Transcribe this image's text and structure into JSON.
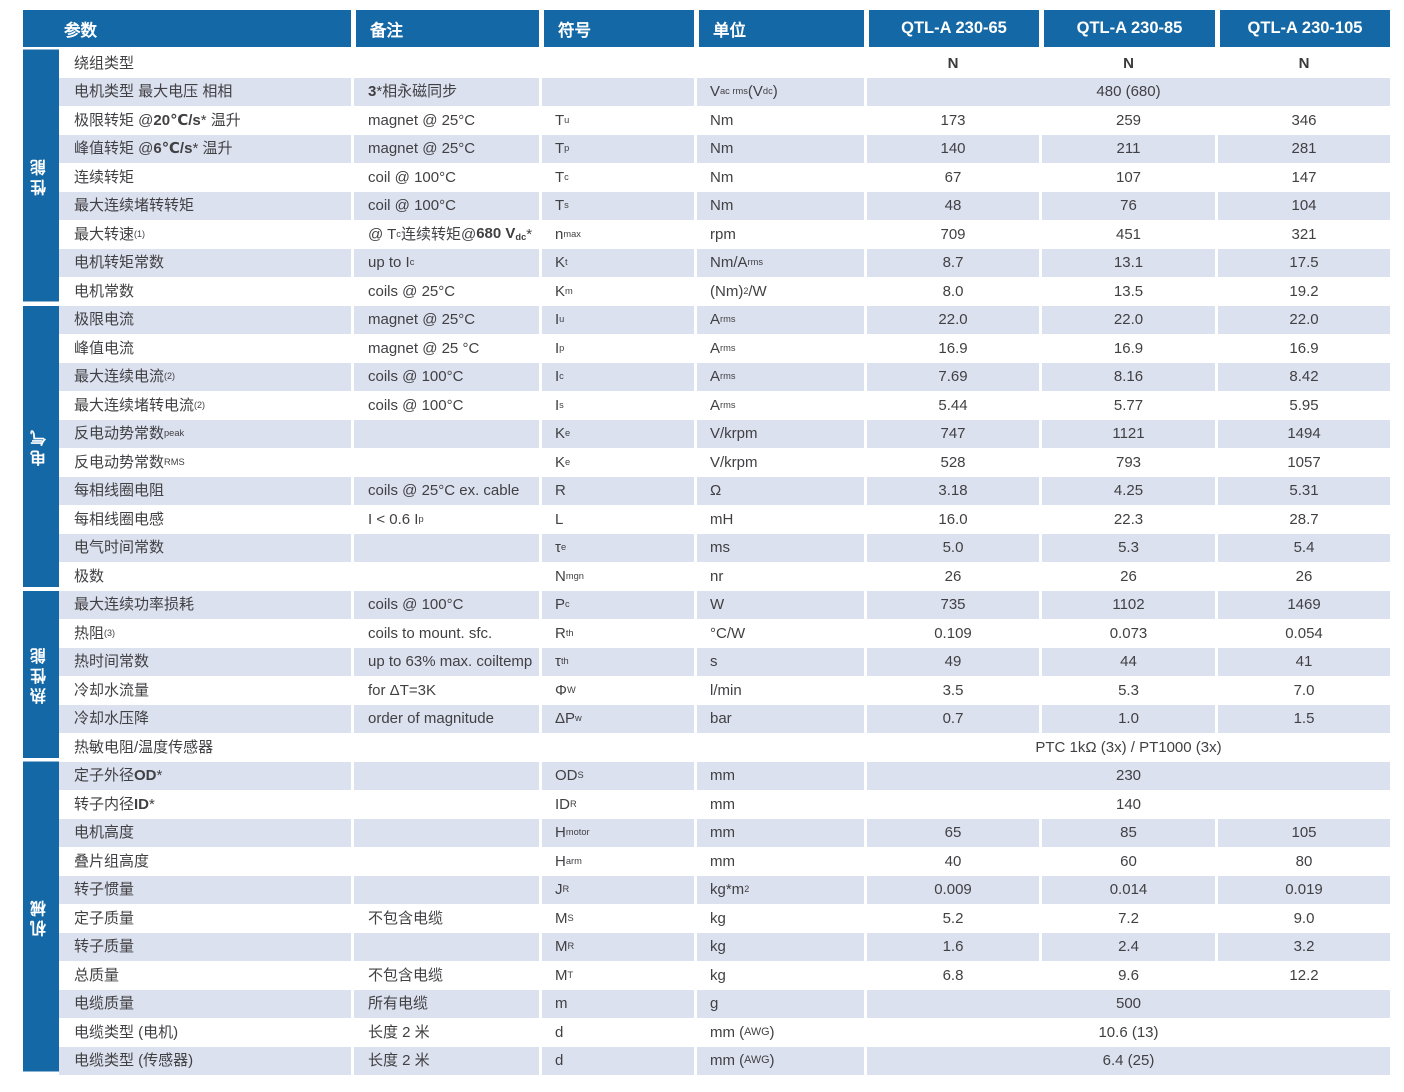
{
  "table": {
    "colors": {
      "header_blue": "#1568A6",
      "section_blue": "#1568A6",
      "stripe_light_blue": "#DCE1EF",
      "text_gray": "#414043"
    },
    "header": {
      "param": "参数",
      "notes": "备注",
      "symbol": "符号",
      "unit": "单位",
      "models": [
        "QTL-A 230-65",
        "QTL-A 230-85",
        "QTL-A 230-105"
      ]
    },
    "sections": [
      {
        "id": "performance",
        "label": "性能",
        "rows": [
          {
            "param": "绕组类型",
            "note": "",
            "symbol": "",
            "unit": "",
            "values": [
              "N",
              "N",
              "N"
            ],
            "bold": true
          },
          {
            "param": "电机类型 最大电压 相相",
            "note": "*{3}*相永磁同步",
            "symbol": "",
            "unit": "V_{ac rms} (V_{dc})",
            "span": "480 (680)"
          },
          {
            "param": "极限转矩 @ *{20℃/s}* 温升",
            "note": "magnet @ 25°C",
            "symbol": "T_{u}",
            "unit": "Nm",
            "values": [
              "173",
              "259",
              "346"
            ]
          },
          {
            "param": "峰值转矩 @ *{6℃/s}* 温升",
            "note": "magnet @ 25°C",
            "symbol": "T_{p}",
            "unit": "Nm",
            "values": [
              "140",
              "211",
              "281"
            ]
          },
          {
            "param": "连续转矩",
            "note": "coil @ 100°C",
            "symbol": "T_{c}",
            "unit": "Nm",
            "values": [
              "67",
              "107",
              "147"
            ]
          },
          {
            "param": "最大连续堵转转矩",
            "note": "coil @ 100°C",
            "symbol": "T_{s}",
            "unit": "Nm",
            "values": [
              "48",
              "76",
              "104"
            ]
          },
          {
            "param": "最大转速^{(1)}",
            "note": "@ T_{c} 连续转矩@ *{680 V_{dc}}*",
            "symbol": "n_{max}",
            "unit": "rpm",
            "values": [
              "709",
              "451",
              "321"
            ]
          },
          {
            "param": "电机转矩常数",
            "note": "up to I_{c}",
            "symbol": "K_{t}",
            "unit": "Nm/A_{rms}",
            "values": [
              "8.7",
              "13.1",
              "17.5"
            ]
          },
          {
            "param": "电机常数",
            "note": "coils @ 25°C",
            "symbol": "K_{m}",
            "unit": "(Nm)^{2}/W",
            "values": [
              "8.0",
              "13.5",
              "19.2"
            ]
          }
        ]
      },
      {
        "id": "electrical",
        "label": "电气",
        "rows": [
          {
            "param": "极限电流",
            "note": "magnet @ 25°C",
            "symbol": "I_{u}",
            "unit": "A_{rms}",
            "values": [
              "22.0",
              "22.0",
              "22.0"
            ]
          },
          {
            "param": "峰值电流",
            "note": "magnet @ 25 °C",
            "symbol": "I_{p}",
            "unit": "A_{rms}",
            "values": [
              "16.9",
              "16.9",
              "16.9"
            ]
          },
          {
            "param": "最大连续电流^{(2)}",
            "note": "coils @ 100°C",
            "symbol": "I_{c}",
            "unit": "A_{rms}",
            "values": [
              "7.69",
              "8.16",
              "8.42"
            ]
          },
          {
            "param": "最大连续堵转电流^{(2)}",
            "note": "coils @ 100°C",
            "symbol": "I_{s}",
            "unit": "A_{rms}",
            "values": [
              "5.44",
              "5.77",
              "5.95"
            ]
          },
          {
            "param": "反电动势常数_{peak}",
            "note": "",
            "symbol": "K_{e}",
            "unit": "V/krpm",
            "values": [
              "747",
              "1121",
              "1494"
            ]
          },
          {
            "param": "反电动势常数_{RMS}",
            "note": "",
            "symbol": "K_{e}",
            "unit": "V/krpm",
            "values": [
              "528",
              "793",
              "1057"
            ]
          },
          {
            "param": "每相线圈电阻",
            "note": "coils @ 25°C ex. cable",
            "symbol": "R",
            "unit": "Ω",
            "values": [
              "3.18",
              "4.25",
              "5.31"
            ]
          },
          {
            "param": "每相线圈电感",
            "note": "I < 0.6 I_{p}",
            "symbol": "L",
            "unit": "mH",
            "values": [
              "16.0",
              "22.3",
              "28.7"
            ]
          },
          {
            "param": "电气时间常数",
            "note": "",
            "symbol": "τ_{e}",
            "unit": "ms",
            "values": [
              "5.0",
              "5.3",
              "5.4"
            ]
          },
          {
            "param": "极数",
            "note": "",
            "symbol": "N_{mgn}",
            "unit": "nr",
            "values": [
              "26",
              "26",
              "26"
            ]
          }
        ]
      },
      {
        "id": "thermal",
        "label": "热性能",
        "rows": [
          {
            "param": "最大连续功率损耗",
            "note": "coils @ 100°C",
            "symbol": "P_{c}",
            "unit": "W",
            "values": [
              "735",
              "1102",
              "1469"
            ]
          },
          {
            "param": "热阻^{(3)}",
            "note": "coils to mount. sfc.",
            "symbol": "R_{th}",
            "unit": "°C/W",
            "values": [
              "0.109",
              "0.073",
              "0.054"
            ]
          },
          {
            "param": "热时间常数",
            "note": "up to 63% max. coiltemp",
            "symbol": "τ_{th}",
            "unit": "s",
            "values": [
              "49",
              "44",
              "41"
            ]
          },
          {
            "param": "冷却水流量",
            "note": "for ΔT=3K",
            "symbol": "Φ_{W}",
            "unit": "l/min",
            "values": [
              "3.5",
              "5.3",
              "7.0"
            ]
          },
          {
            "param": "冷却水压降",
            "note": "order of magnitude",
            "symbol": "ΔP_{w}",
            "unit": "bar",
            "values": [
              "0.7",
              "1.0",
              "1.5"
            ]
          },
          {
            "param": "热敏电阻/温度传感器",
            "note": "",
            "symbol": "",
            "unit": "",
            "span": "PTC 1kΩ (3x) / PT1000 (3x)"
          }
        ]
      },
      {
        "id": "mechanical",
        "label": "机械",
        "rows": [
          {
            "param": "定子外径 *{OD}*",
            "note": "",
            "symbol": "OD_{S}",
            "unit": "mm",
            "span": "230"
          },
          {
            "param": "转子内径 *{ID}*",
            "note": "",
            "symbol": "ID_{R}",
            "unit": "mm",
            "span": "140"
          },
          {
            "param": "电机高度",
            "note": "",
            "symbol": "H_{motor}",
            "unit": "mm",
            "values": [
              "65",
              "85",
              "105"
            ]
          },
          {
            "param": "叠片组高度",
            "note": "",
            "symbol": "H_{arm}",
            "unit": "mm",
            "values": [
              "40",
              "60",
              "80"
            ]
          },
          {
            "param": "转子惯量",
            "note": "",
            "symbol": "J_{R}",
            "unit": "kg*m^{2}",
            "values": [
              "0.009",
              "0.014",
              "0.019"
            ]
          },
          {
            "param": "定子质量",
            "note": "不包含电缆",
            "symbol": "M_{S}",
            "unit": "kg",
            "values": [
              "5.2",
              "7.2",
              "9.0"
            ]
          },
          {
            "param": "转子质量",
            "note": "",
            "symbol": "M_{R}",
            "unit": "kg",
            "values": [
              "1.6",
              "2.4",
              "3.2"
            ]
          },
          {
            "param": "总质量",
            "note": "不包含电缆",
            "symbol": "M_{T}",
            "unit": "kg",
            "values": [
              "6.8",
              "9.6",
              "12.2"
            ]
          },
          {
            "param": "电缆质量",
            "note": "所有电缆",
            "symbol": "m",
            "unit": "g",
            "span": "500"
          },
          {
            "param": "电缆类型 (电机)",
            "note": "长度 2 米",
            "symbol": "d",
            "unit": "mm (%{AWG})",
            "span": "10.6 (13)"
          },
          {
            "param": "电缆类型 (传感器)",
            "note": "长度 2 米",
            "symbol": "d",
            "unit": "mm (%{AWG})",
            "span": "6.4 (25)"
          }
        ]
      }
    ]
  }
}
